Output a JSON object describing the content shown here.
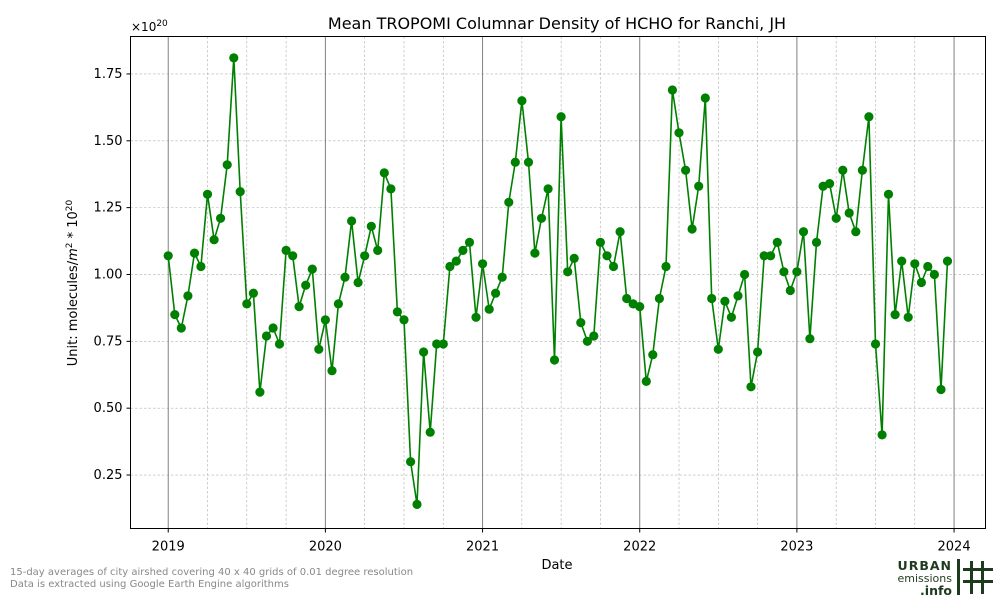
{
  "chart_data": {
    "type": "line",
    "title": "Mean TROPOMI Columnar Density of HCHO for Ranchi, JH",
    "xlabel": "Date",
    "ylabel_prefix": "Unit: molecules/",
    "ylabel_m": "m",
    "ylabel_exp": "2",
    "ylabel_mid": " * 10",
    "ylabel_exp2": "20",
    "offset_base": "×10",
    "offset_exp": "20",
    "x_tick_labels": [
      "2019",
      "2020",
      "2021",
      "2022",
      "2023",
      "2024"
    ],
    "x_tick_years": [
      2019,
      2020,
      2021,
      2022,
      2023,
      2024
    ],
    "y_ticks": [
      0.25,
      0.5,
      0.75,
      1.0,
      1.25,
      1.5,
      1.75
    ],
    "y_tick_labels": [
      "0.25",
      "0.50",
      "0.75",
      "1.00",
      "1.25",
      "1.50",
      "1.75"
    ],
    "xlim_year": [
      2018.76,
      2024.2
    ],
    "ylim": [
      0.05,
      1.89
    ],
    "grid": true,
    "line_color": "#008000",
    "marker_color": "#008000",
    "series": [
      {
        "x": [
          2019.0,
          2019.042,
          2019.083,
          2019.125,
          2019.167,
          2019.208,
          2019.25,
          2019.292,
          2019.333,
          2019.375,
          2019.417,
          2019.458,
          2019.5,
          2019.542,
          2019.583,
          2019.625,
          2019.667,
          2019.708,
          2019.75,
          2019.792,
          2019.833,
          2019.875,
          2019.917,
          2019.958,
          2020.0,
          2020.042,
          2020.083,
          2020.125,
          2020.167,
          2020.208,
          2020.25,
          2020.292,
          2020.333,
          2020.375,
          2020.417,
          2020.458,
          2020.5,
          2020.542,
          2020.583,
          2020.625,
          2020.667,
          2020.708,
          2020.75,
          2020.792,
          2020.833,
          2020.875,
          2020.917,
          2020.958,
          2021.0,
          2021.042,
          2021.083,
          2021.125,
          2021.167,
          2021.208,
          2021.25,
          2021.292,
          2021.333,
          2021.375,
          2021.417,
          2021.458,
          2021.5,
          2021.542,
          2021.583,
          2021.625,
          2021.667,
          2021.708,
          2021.75,
          2021.792,
          2021.833,
          2021.875,
          2021.917,
          2021.958,
          2022.0,
          2022.042,
          2022.083,
          2022.125,
          2022.167,
          2022.208,
          2022.25,
          2022.292,
          2022.333,
          2022.375,
          2022.417,
          2022.458,
          2022.5,
          2022.542,
          2022.583,
          2022.625,
          2022.667,
          2022.708,
          2022.75,
          2022.792,
          2022.833,
          2022.875,
          2022.917,
          2022.958,
          2023.0,
          2023.042,
          2023.083,
          2023.125,
          2023.167,
          2023.208,
          2023.25,
          2023.292,
          2023.333,
          2023.375,
          2023.417,
          2023.458,
          2023.5,
          2023.542,
          2023.583,
          2023.625,
          2023.667,
          2023.708,
          2023.75,
          2023.792,
          2023.833,
          2023.875,
          2023.917,
          2023.958
        ],
        "y": [
          1.07,
          0.85,
          0.8,
          0.92,
          1.08,
          1.03,
          1.3,
          1.13,
          1.21,
          1.41,
          1.81,
          1.31,
          0.89,
          0.93,
          0.56,
          0.77,
          0.8,
          0.74,
          1.09,
          1.07,
          0.88,
          0.96,
          1.02,
          0.72,
          0.83,
          0.64,
          0.89,
          0.99,
          1.2,
          0.97,
          1.07,
          1.18,
          1.09,
          1.38,
          1.32,
          0.86,
          0.83,
          0.3,
          0.14,
          0.71,
          0.41,
          0.74,
          0.74,
          1.03,
          1.05,
          1.09,
          1.12,
          0.84,
          1.04,
          0.87,
          0.93,
          0.99,
          1.27,
          1.42,
          1.65,
          1.42,
          1.08,
          1.21,
          1.32,
          0.68,
          1.59,
          1.01,
          1.06,
          0.82,
          0.75,
          0.77,
          1.12,
          1.07,
          1.03,
          1.16,
          0.91,
          0.89,
          0.88,
          0.6,
          0.7,
          0.91,
          1.03,
          1.69,
          1.53,
          1.39,
          1.17,
          1.33,
          1.66,
          0.91,
          0.72,
          0.9,
          0.84,
          0.92,
          1.0,
          0.58,
          0.71,
          1.07,
          1.07,
          1.12,
          1.01,
          0.94,
          1.01,
          1.16,
          0.76,
          1.12,
          1.33,
          1.34,
          1.21,
          1.39,
          1.23,
          1.16,
          1.39,
          1.59,
          0.74,
          0.4,
          1.3,
          0.85,
          1.05,
          0.84,
          1.04,
          0.97,
          1.03,
          1.0,
          0.57,
          1.05
        ]
      }
    ]
  },
  "footnote": {
    "line1": "15-day averages of city airshed covering 40 x 40 grids of 0.01 degree resolution",
    "line2": "Data is extracted using Google Earth Engine algorithms"
  },
  "logo": {
    "word1": "URBAN",
    "word2": "emissions",
    "word3": ".info"
  }
}
